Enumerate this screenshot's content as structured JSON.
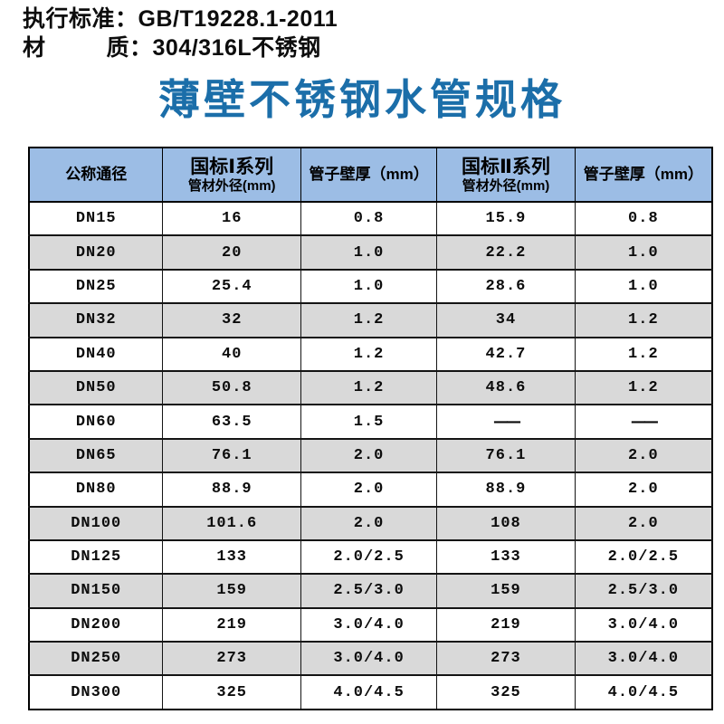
{
  "info": {
    "line1": "执行标准：GB/T19228.1-2011",
    "line2": "材         质：304/316L不锈钢"
  },
  "title": {
    "text": "薄壁不锈钢水管规格",
    "color": "#1b6ea9"
  },
  "table": {
    "header_bg": "#9cbde5",
    "row_alt_bg": "#d9d9d9",
    "columns": [
      {
        "title": "公称通径",
        "subtitle": ""
      },
      {
        "title": "国标Ⅰ系列",
        "subtitle": "管材外径(mm)"
      },
      {
        "title": "管子壁厚（mm）",
        "subtitle": ""
      },
      {
        "title": "国标Ⅱ系列",
        "subtitle": "管材外径(mm)"
      },
      {
        "title": "管子壁厚（mm）",
        "subtitle": ""
      }
    ],
    "rows": [
      [
        "DN15",
        "16",
        "0.8",
        "15.9",
        "0.8"
      ],
      [
        "DN20",
        "20",
        "1.0",
        "22.2",
        "1.0"
      ],
      [
        "DN25",
        "25.4",
        "1.0",
        "28.6",
        "1.0"
      ],
      [
        "DN32",
        "32",
        "1.2",
        "34",
        "1.2"
      ],
      [
        "DN40",
        "40",
        "1.2",
        "42.7",
        "1.2"
      ],
      [
        "DN50",
        "50.8",
        "1.2",
        "48.6",
        "1.2"
      ],
      [
        "DN60",
        "63.5",
        "1.5",
        "——",
        "——"
      ],
      [
        "DN65",
        "76.1",
        "2.0",
        "76.1",
        "2.0"
      ],
      [
        "DN80",
        "88.9",
        "2.0",
        "88.9",
        "2.0"
      ],
      [
        "DN100",
        "101.6",
        "2.0",
        "108",
        "2.0"
      ],
      [
        "DN125",
        "133",
        "2.0/2.5",
        "133",
        "2.0/2.5"
      ],
      [
        "DN150",
        "159",
        "2.5/3.0",
        "159",
        "2.5/3.0"
      ],
      [
        "DN200",
        "219",
        "3.0/4.0",
        "219",
        "3.0/4.0"
      ],
      [
        "DN250",
        "273",
        "3.0/4.0",
        "273",
        "3.0/4.0"
      ],
      [
        "DN300",
        "325",
        "4.0/4.5",
        "325",
        "4.0/4.5"
      ]
    ]
  }
}
